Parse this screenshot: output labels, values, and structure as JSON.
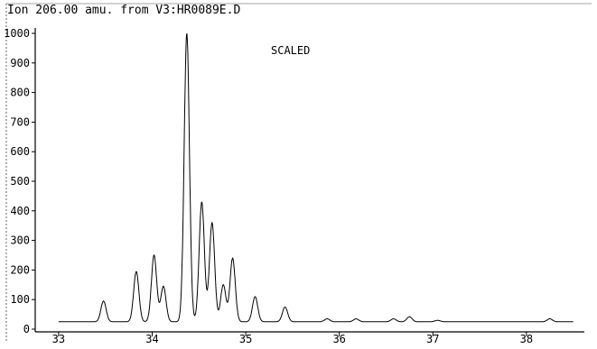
{
  "header": {
    "title": "Ion 206.00 amu. from V3:HR0089E.D",
    "scale_note": "SCALED"
  },
  "chart_data": {
    "type": "line",
    "title": "Ion 206.00 amu. from V3:HR0089E.D",
    "annotation": "SCALED",
    "xlabel": "",
    "ylabel": "",
    "xlim": [
      32.75,
      38.6
    ],
    "ylim": [
      0,
      1000
    ],
    "x_ticks": [
      33,
      34,
      35,
      36,
      37,
      38
    ],
    "x_tick_labels": [
      "33",
      "34",
      "35",
      "36",
      "37",
      "38"
    ],
    "y_ticks": [
      0,
      100,
      200,
      300,
      400,
      500,
      600,
      700,
      800,
      900,
      1000
    ],
    "y_tick_labels": [
      "0",
      "100",
      "200",
      "300",
      "400",
      "500",
      "600",
      "700",
      "800",
      "900",
      "1000"
    ],
    "grid": false,
    "series": [
      {
        "baseline": 25,
        "peaks": [
          {
            "rt": 33.48,
            "height": 95
          },
          {
            "rt": 33.83,
            "height": 195
          },
          {
            "rt": 34.02,
            "height": 250
          },
          {
            "rt": 34.12,
            "height": 145
          },
          {
            "rt": 34.37,
            "height": 1000
          },
          {
            "rt": 34.53,
            "height": 430
          },
          {
            "rt": 34.64,
            "height": 360
          },
          {
            "rt": 34.76,
            "height": 150
          },
          {
            "rt": 34.86,
            "height": 240
          },
          {
            "rt": 35.1,
            "height": 110
          },
          {
            "rt": 35.42,
            "height": 75
          },
          {
            "rt": 35.87,
            "height": 35
          },
          {
            "rt": 36.18,
            "height": 35
          },
          {
            "rt": 36.58,
            "height": 35
          },
          {
            "rt": 36.75,
            "height": 42
          },
          {
            "rt": 37.05,
            "height": 30
          },
          {
            "rt": 38.25,
            "height": 35
          }
        ]
      }
    ]
  }
}
